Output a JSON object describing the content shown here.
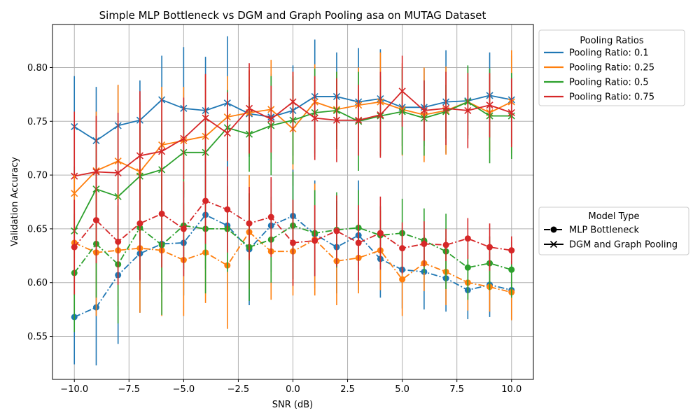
{
  "chart_data": {
    "type": "line",
    "title": "Simple MLP Bottleneck vs DGM and Graph Pooling asa on MUTAG Dataset",
    "xlabel": "SNR (dB)",
    "ylabel": "Validation Accuracy",
    "xlim": [
      -11.0,
      11.0
    ],
    "ylim": [
      0.51,
      0.84
    ],
    "xticks": [
      -10.0,
      -7.5,
      -5.0,
      -2.5,
      0.0,
      2.5,
      5.0,
      7.5,
      10.0
    ],
    "xtick_labels": [
      "−10.0",
      "−7.5",
      "−5.0",
      "−2.5",
      "0.0",
      "2.5",
      "5.0",
      "7.5",
      "10.0"
    ],
    "yticks": [
      0.55,
      0.6,
      0.65,
      0.7,
      0.75,
      0.8
    ],
    "ytick_labels": [
      "0.55",
      "0.60",
      "0.65",
      "0.70",
      "0.75",
      "0.80"
    ],
    "grid": true,
    "x": [
      -10,
      -9,
      -8,
      -7,
      -6,
      -5,
      -4,
      -3,
      -2,
      -1,
      0,
      1,
      2,
      3,
      4,
      5,
      6,
      7,
      8,
      9,
      10
    ],
    "legend_pooling": {
      "title": "Pooling Ratios",
      "placement": "outside-upper-right",
      "entries": [
        {
          "label": "Pooling Ratio: 0.1",
          "color": "#1f77b4"
        },
        {
          "label": "Pooling Ratio: 0.25",
          "color": "#ff7f0e"
        },
        {
          "label": "Pooling Ratio: 0.5",
          "color": "#2ca02c"
        },
        {
          "label": "Pooling Ratio: 0.75",
          "color": "#d62728"
        }
      ]
    },
    "legend_model": {
      "title": "Model Type",
      "placement": "outside-center-right",
      "entries": [
        {
          "label": "MLP Bottleneck",
          "style": "dashdot",
          "marker": "circle"
        },
        {
          "label": "DGM and Graph Pooling",
          "style": "solid",
          "marker": "x"
        }
      ]
    },
    "series": [
      {
        "model": "DGM and Graph Pooling",
        "ratio": 0.1,
        "color": "#1f77b4",
        "values": [
          0.745,
          0.732,
          0.746,
          0.751,
          0.77,
          0.762,
          0.76,
          0.767,
          0.757,
          0.754,
          0.76,
          0.773,
          0.773,
          0.768,
          0.771,
          0.763,
          0.763,
          0.768,
          0.769,
          0.774,
          0.77
        ],
        "errors": [
          0.047,
          0.05,
          0.037,
          0.037,
          0.041,
          0.057,
          0.05,
          0.062,
          0.04,
          0.04,
          0.042,
          0.053,
          0.041,
          0.05,
          0.046,
          0.036,
          0.036,
          0.048,
          0.032,
          0.04,
          0.041
        ]
      },
      {
        "model": "DGM and Graph Pooling",
        "ratio": 0.25,
        "color": "#ff7f0e",
        "values": [
          0.683,
          0.704,
          0.713,
          0.703,
          0.728,
          0.732,
          0.736,
          0.754,
          0.758,
          0.761,
          0.743,
          0.768,
          0.761,
          0.765,
          0.768,
          0.761,
          0.756,
          0.76,
          0.768,
          0.758,
          0.768
        ],
        "errors": [
          0.06,
          0.055,
          0.071,
          0.065,
          0.054,
          0.05,
          0.057,
          0.038,
          0.04,
          0.046,
          0.053,
          0.035,
          0.035,
          0.035,
          0.046,
          0.043,
          0.044,
          0.041,
          0.031,
          0.036,
          0.048
        ]
      },
      {
        "model": "DGM and Graph Pooling",
        "ratio": 0.5,
        "color": "#2ca02c",
        "values": [
          0.648,
          0.687,
          0.68,
          0.699,
          0.705,
          0.721,
          0.721,
          0.744,
          0.738,
          0.746,
          0.751,
          0.758,
          0.76,
          0.75,
          0.755,
          0.759,
          0.753,
          0.759,
          0.768,
          0.755,
          0.755
        ],
        "errors": [
          0.06,
          0.051,
          0.068,
          0.046,
          0.043,
          0.042,
          0.04,
          0.035,
          0.035,
          0.046,
          0.041,
          0.041,
          0.036,
          0.046,
          0.037,
          0.04,
          0.035,
          0.025,
          0.034,
          0.044,
          0.04
        ]
      },
      {
        "model": "DGM and Graph Pooling",
        "ratio": 0.75,
        "color": "#d62728",
        "values": [
          0.699,
          0.703,
          0.702,
          0.718,
          0.722,
          0.734,
          0.753,
          0.739,
          0.762,
          0.752,
          0.768,
          0.753,
          0.751,
          0.751,
          0.756,
          0.778,
          0.76,
          0.762,
          0.76,
          0.765,
          0.758
        ],
        "errors": [
          0.06,
          0.052,
          0.056,
          0.06,
          0.049,
          0.038,
          0.041,
          0.038,
          0.042,
          0.031,
          0.028,
          0.039,
          0.039,
          0.033,
          0.04,
          0.033,
          0.028,
          0.034,
          0.035,
          0.03,
          0.032
        ]
      },
      {
        "model": "MLP Bottleneck",
        "ratio": 0.1,
        "color": "#1f77b4",
        "values": [
          0.568,
          0.577,
          0.607,
          0.627,
          0.636,
          0.637,
          0.663,
          0.653,
          0.631,
          0.653,
          0.662,
          0.645,
          0.633,
          0.644,
          0.622,
          0.612,
          0.61,
          0.604,
          0.593,
          0.598,
          0.593
        ],
        "errors": [
          0.044,
          0.054,
          0.064,
          0.055,
          0.045,
          0.049,
          0.05,
          0.06,
          0.052,
          0.043,
          0.043,
          0.05,
          0.043,
          0.051,
          0.036,
          0.036,
          0.035,
          0.031,
          0.027,
          0.03,
          0.027
        ]
      },
      {
        "model": "MLP Bottleneck",
        "ratio": 0.25,
        "color": "#ff7f0e",
        "values": [
          0.637,
          0.628,
          0.63,
          0.632,
          0.63,
          0.621,
          0.628,
          0.616,
          0.647,
          0.629,
          0.629,
          0.64,
          0.62,
          0.623,
          0.63,
          0.603,
          0.618,
          0.61,
          0.6,
          0.596,
          0.591
        ],
        "errors": [
          0.063,
          0.059,
          0.052,
          0.06,
          0.061,
          0.052,
          0.047,
          0.059,
          0.053,
          0.045,
          0.041,
          0.052,
          0.041,
          0.033,
          0.037,
          0.034,
          0.026,
          0.031,
          0.026,
          0.023,
          0.026
        ]
      },
      {
        "model": "MLP Bottleneck",
        "ratio": 0.5,
        "color": "#2ca02c",
        "values": [
          0.609,
          0.636,
          0.617,
          0.651,
          0.635,
          0.653,
          0.65,
          0.65,
          0.633,
          0.64,
          0.653,
          0.646,
          0.649,
          0.651,
          0.644,
          0.646,
          0.639,
          0.629,
          0.614,
          0.618,
          0.612
        ],
        "errors": [
          0.055,
          0.05,
          0.055,
          0.048,
          0.065,
          0.04,
          0.06,
          0.04,
          0.05,
          0.04,
          0.05,
          0.04,
          0.035,
          0.035,
          0.027,
          0.032,
          0.03,
          0.035,
          0.03,
          0.025,
          0.026
        ]
      },
      {
        "model": "MLP Bottleneck",
        "ratio": 0.75,
        "color": "#d62728",
        "values": [
          0.633,
          0.658,
          0.638,
          0.655,
          0.664,
          0.65,
          0.676,
          0.668,
          0.655,
          0.661,
          0.637,
          0.639,
          0.648,
          0.637,
          0.646,
          0.632,
          0.636,
          0.635,
          0.641,
          0.633,
          0.63
        ],
        "errors": [
          0.044,
          0.04,
          0.04,
          0.053,
          0.05,
          0.044,
          0.04,
          0.04,
          0.034,
          0.037,
          0.04,
          0.033,
          0.033,
          0.035,
          0.034,
          0.024,
          0.021,
          0.015,
          0.019,
          0.022,
          0.013
        ]
      }
    ]
  }
}
